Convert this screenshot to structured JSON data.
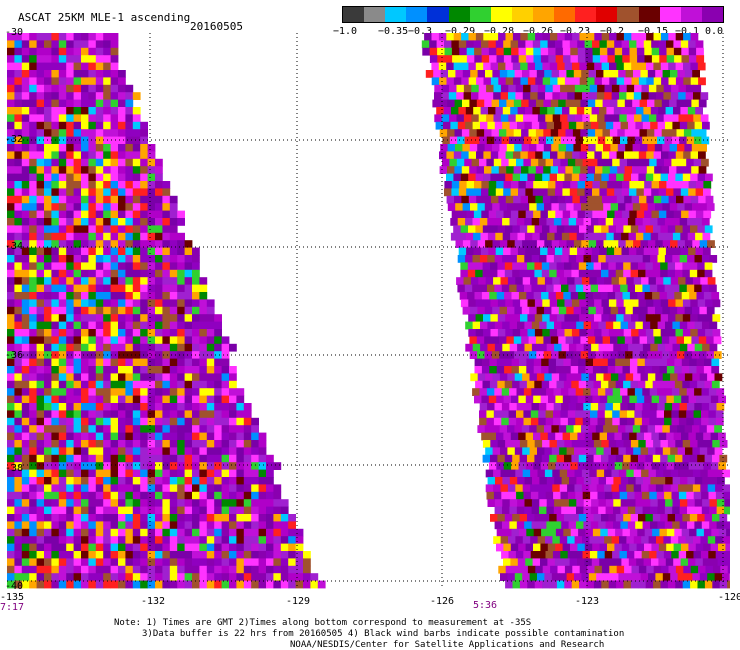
{
  "title": "ASCAT 25KM MLE-1 ascending",
  "date": "20160505",
  "colorbar": {
    "colors": [
      "#3a3a3a",
      "#8a8a8a",
      "#00c8ff",
      "#0090ff",
      "#0030d8",
      "#008800",
      "#30d030",
      "#ffff00",
      "#ffd000",
      "#ffa500",
      "#ff6a00",
      "#ff2020",
      "#e00000",
      "#a0522d",
      "#6a0000",
      "#ff33ff",
      "#c010d8",
      "#8a00b0"
    ],
    "ticks": [
      "−1.0",
      "−0.35",
      "−0.3",
      "−0.29",
      "−0.28",
      "−0.26",
      "−0.23",
      "−0.2",
      "−0.15",
      "−0.1",
      "0.0"
    ]
  },
  "axes": {
    "y_labels": [
      "-30",
      "-32",
      "-34",
      "-36",
      "-38",
      "-40"
    ],
    "x_labels": [
      "-135",
      "-132",
      "-129",
      "-126",
      "-123",
      "-120"
    ]
  },
  "times": [
    "7:17",
    "5:36"
  ],
  "notes": [
    "Note: 1) Times are GMT 2)Times along bottom correspond to measurement at -35S",
    "3)Data buffer is 22 hrs from 20160505 4) Black wind barbs indicate possible contamination",
    "NOAA/NESDIS/Center for Satellite Applications and Research"
  ]
}
